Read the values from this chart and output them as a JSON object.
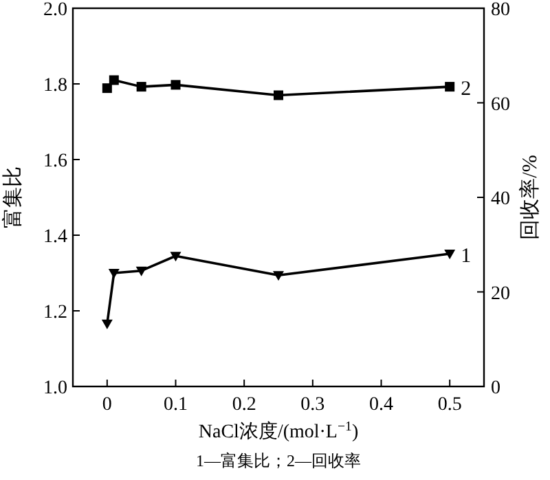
{
  "chart_data": {
    "type": "line",
    "xlabel": "NaCl浓度/(mol·L$^{−1}$)",
    "ylabel": "富集比",
    "y2label": "回收率/%",
    "annotations": [
      "1—富集比；2—回收率"
    ],
    "x": [
      0,
      0.01,
      0.05,
      0.1,
      0.25,
      0.5
    ],
    "xlim": [
      -0.05,
      0.55
    ],
    "xticks": [
      0,
      0.1,
      0.2,
      0.3,
      0.4,
      0.5
    ],
    "ylim": [
      1.0,
      2.0
    ],
    "yticks": [
      {
        "value": 1,
        "label": "1.0"
      },
      1.2,
      1.4,
      1.6,
      1.8,
      {
        "value": 2,
        "label": "2.0"
      }
    ],
    "y2lim": [
      0,
      80
    ],
    "y2ticks": [
      0,
      20,
      40,
      60,
      80
    ],
    "grid": false,
    "series": [
      {
        "name": "1",
        "color": "#000000",
        "marker": "triangle",
        "values": [
          1.166,
          1.3,
          1.306,
          1.345,
          1.294,
          1.351
        ]
      },
      {
        "name": "2",
        "color": "#000000",
        "marker": "square",
        "axis": "y2",
        "values": [
          63.1,
          64.8,
          63.4,
          63.8,
          61.6,
          63.4
        ]
      }
    ]
  }
}
